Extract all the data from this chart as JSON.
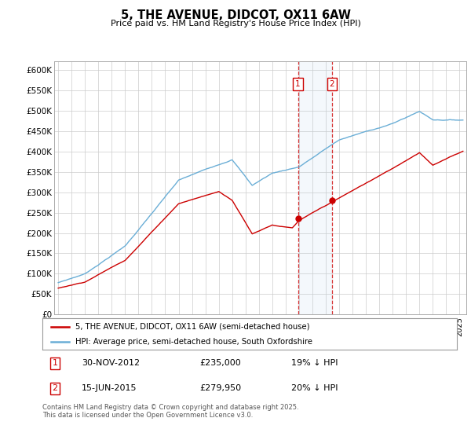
{
  "title": "5, THE AVENUE, DIDCOT, OX11 6AW",
  "subtitle": "Price paid vs. HM Land Registry's House Price Index (HPI)",
  "ylim": [
    0,
    620000
  ],
  "xlim_start": 1994.7,
  "xlim_end": 2025.5,
  "hpi_color": "#6aaed6",
  "price_color": "#cc0000",
  "marker1_x": 2012.92,
  "marker2_x": 2015.46,
  "marker1_y": 235000,
  "marker2_y": 279950,
  "marker1_label": "1",
  "marker2_label": "2",
  "legend_line1": "5, THE AVENUE, DIDCOT, OX11 6AW (semi-detached house)",
  "legend_line2": "HPI: Average price, semi-detached house, South Oxfordshire",
  "table_row1": [
    "1",
    "30-NOV-2012",
    "£235,000",
    "19% ↓ HPI"
  ],
  "table_row2": [
    "2",
    "15-JUN-2015",
    "£279,950",
    "20% ↓ HPI"
  ],
  "footnote": "Contains HM Land Registry data © Crown copyright and database right 2025.\nThis data is licensed under the Open Government Licence v3.0.",
  "shade_xmin": 2012.92,
  "shade_xmax": 2015.46
}
